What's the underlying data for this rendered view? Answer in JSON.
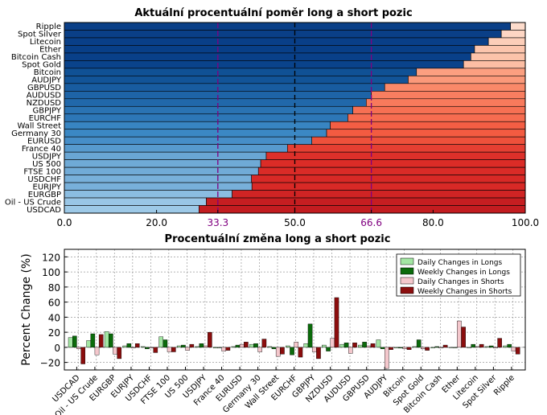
{
  "chart_data": [
    {
      "type": "bar",
      "orientation": "horizontal",
      "stacked": true,
      "title": "Aktuální procentuální poměr long a short pozic",
      "categories": [
        "Ripple",
        "Spot Silver",
        "Litecoin",
        "Ether",
        "Bitcoin Cash",
        "Spot Gold",
        "Bitcoin",
        "AUDJPY",
        "GBPUSD",
        "AUDUSD",
        "NZDUSD",
        "GBPJPY",
        "EURCHF",
        "Wall Street",
        "Germany 30",
        "EURUSD",
        "France 40",
        "USDJPY",
        "US 500",
        "FTSE 100",
        "USDCHF",
        "EURJPY",
        "EURGBP",
        "Oil - US Crude",
        "USDCAD"
      ],
      "series": [
        {
          "values": [
            96.8,
            94.8,
            92.0,
            89.0,
            88.2,
            86.6,
            76.4,
            74.6,
            69.5,
            66.6,
            65.5,
            62.6,
            61.5,
            57.7,
            56.9,
            53.7,
            48.4,
            43.8,
            42.6,
            42.1,
            40.6,
            40.7,
            36.4,
            30.8,
            29.2
          ]
        },
        {
          "values": [
            3.2,
            5.2,
            8.0,
            11.0,
            11.8,
            13.4,
            23.6,
            25.4,
            30.5,
            33.4,
            34.5,
            37.4,
            38.5,
            42.3,
            43.1,
            46.3,
            51.6,
            56.2,
            57.4,
            57.9,
            59.4,
            59.3,
            63.6,
            69.2,
            70.8
          ]
        }
      ],
      "xlim": [
        0,
        100
      ],
      "xticks": [
        "0.0",
        "20.0",
        "33.3",
        "50.0",
        "66.6",
        "80.0",
        "100.0"
      ],
      "highlighted_ticks": [
        "33.3",
        "66.6"
      ],
      "reference_lines": [
        33.3,
        50.0,
        66.6
      ],
      "grid": false
    },
    {
      "type": "bar",
      "title": "Procentuální změna long a short pozic",
      "ylabel": "Percent Change (%)",
      "ylim": [
        -30,
        130
      ],
      "yticks": [
        "−20",
        "0",
        "20",
        "40",
        "60",
        "80",
        "100",
        "120"
      ],
      "categories": [
        "USDCAD",
        "Oil - US Crude",
        "EURGBP",
        "EURJPY",
        "USDCHF",
        "FTSE 100",
        "US 500",
        "USDJPY",
        "France 40",
        "EURUSD",
        "Germany 30",
        "Wall Street",
        "EURCHF",
        "GBPJPY",
        "NZDUSD",
        "AUDUSD",
        "GBPUSD",
        "AUDJPY",
        "Bitcoin",
        "Spot Gold",
        "Bitcoin Cash",
        "Ether",
        "Litecoin",
        "Spot Silver",
        "Ripple"
      ],
      "series": [
        {
          "name": "Daily Changes in Longs",
          "values": [
            13,
            9,
            21,
            2,
            1,
            14,
            2,
            1,
            -1,
            1,
            4,
            1,
            2,
            5,
            3,
            4,
            3,
            10,
            -1,
            1,
            -1,
            0,
            0,
            1,
            2
          ]
        },
        {
          "name": "Weekly Changes in Longs",
          "values": [
            15,
            18,
            18,
            5,
            -2,
            10,
            3,
            5,
            0,
            3,
            5,
            -2,
            -10,
            31,
            -5,
            6,
            7,
            -2,
            -1,
            10,
            1,
            0,
            4,
            2,
            4
          ]
        },
        {
          "name": "Daily Changes in Shorts",
          "values": [
            -2,
            -10,
            -9,
            -1,
            -1,
            -6,
            -4,
            2,
            -5,
            4,
            -6,
            -12,
            7,
            -6,
            12,
            -8,
            2,
            -28,
            -2,
            -2,
            -1,
            35,
            1,
            -1,
            -5
          ]
        },
        {
          "name": "Weekly Changes in Shorts",
          "values": [
            -22,
            17,
            -15,
            5,
            -7,
            -6,
            4,
            20,
            -4,
            7,
            11,
            -9,
            -13,
            -15,
            66,
            6,
            5,
            -3,
            -3,
            -4,
            3,
            27,
            4,
            12,
            -9
          ]
        }
      ],
      "grid": true,
      "legend": "top-right"
    }
  ],
  "colors": {
    "long_ramp": [
      "#0b3f87",
      "#083f88",
      "#0e4d92",
      "#1a5fa3",
      "#3a87c4",
      "#5e9ed0",
      "#8ebfe2",
      "#a6cfea"
    ],
    "short_ramp": [
      "#fde5d9",
      "#fcbba0",
      "#fb8f6e",
      "#f35b41",
      "#db2b27",
      "#c11b1f"
    ],
    "daily_longs": "#a3e6a3",
    "weekly_longs": "#0b6b0b",
    "daily_shorts": "#f4c7cc",
    "weekly_shorts": "#8b0d0d",
    "highlight": "#800080"
  }
}
